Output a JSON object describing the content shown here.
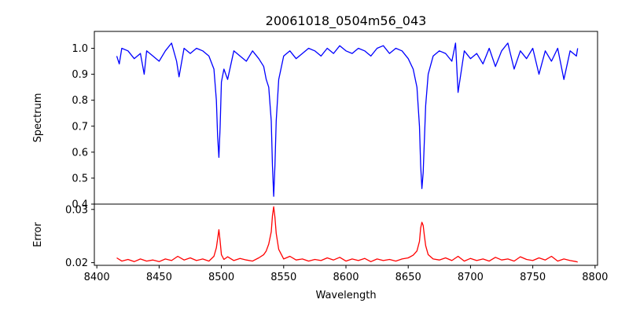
{
  "chart_data": {
    "type": "line",
    "title": "20061018_0504m56_043",
    "xlabel": "Wavelength",
    "x_ticks": [
      8400,
      8450,
      8500,
      8550,
      8600,
      8650,
      8700,
      8750,
      8800
    ],
    "x_tick_labels": [
      "8400",
      "8450",
      "8500",
      "8550",
      "8600",
      "8650",
      "8700",
      "8750",
      "8800"
    ],
    "xlim": [
      8398,
      8802
    ],
    "grid": false,
    "panels": [
      {
        "ylabel": "Spectrum",
        "ylim": [
          0.4,
          1.065
        ],
        "y_ticks": [
          0.4,
          0.5,
          0.6,
          0.7,
          0.8,
          0.9,
          1.0
        ],
        "y_tick_labels": [
          "0.4",
          "0.5",
          "0.6",
          "0.7",
          "0.8",
          "0.9",
          "1.0"
        ],
        "series_color": "#0000ff",
        "x": [
          8416,
          8418,
          8420,
          8425,
          8430,
          8435,
          8438,
          8440,
          8445,
          8450,
          8455,
          8460,
          8464,
          8466,
          8470,
          8475,
          8480,
          8485,
          8490,
          8494,
          8496,
          8497,
          8498,
          8499,
          8500,
          8502,
          8505,
          8510,
          8515,
          8520,
          8525,
          8530,
          8534,
          8536,
          8538,
          8540,
          8541,
          8542,
          8543,
          8544,
          8546,
          8550,
          8555,
          8560,
          8565,
          8570,
          8575,
          8580,
          8585,
          8590,
          8595,
          8600,
          8605,
          8610,
          8615,
          8620,
          8625,
          8630,
          8635,
          8640,
          8645,
          8650,
          8654,
          8657,
          8659,
          8660,
          8661,
          8662,
          8663,
          8664,
          8666,
          8670,
          8675,
          8680,
          8685,
          8688,
          8690,
          8695,
          8700,
          8705,
          8710,
          8715,
          8720,
          8725,
          8730,
          8735,
          8740,
          8745,
          8750,
          8755,
          8760,
          8765,
          8770,
          8775,
          8780,
          8785,
          8786
        ],
        "y": [
          0.97,
          0.94,
          1.0,
          0.99,
          0.96,
          0.98,
          0.9,
          0.99,
          0.97,
          0.95,
          0.99,
          1.02,
          0.95,
          0.89,
          1.0,
          0.98,
          1.0,
          0.99,
          0.97,
          0.92,
          0.8,
          0.66,
          0.58,
          0.7,
          0.87,
          0.92,
          0.88,
          0.99,
          0.97,
          0.95,
          0.99,
          0.96,
          0.93,
          0.88,
          0.85,
          0.72,
          0.55,
          0.43,
          0.55,
          0.72,
          0.88,
          0.97,
          0.99,
          0.96,
          0.98,
          1.0,
          0.99,
          0.97,
          1.0,
          0.98,
          1.01,
          0.99,
          0.98,
          1.0,
          0.99,
          0.97,
          1.0,
          1.01,
          0.98,
          1.0,
          0.99,
          0.96,
          0.92,
          0.85,
          0.7,
          0.55,
          0.46,
          0.52,
          0.65,
          0.78,
          0.9,
          0.97,
          0.99,
          0.98,
          0.95,
          1.02,
          0.83,
          0.99,
          0.96,
          0.98,
          0.94,
          1.0,
          0.93,
          0.99,
          1.02,
          0.92,
          0.99,
          0.96,
          1.0,
          0.9,
          0.99,
          0.95,
          1.0,
          0.88,
          0.99,
          0.97,
          1.0
        ]
      },
      {
        "ylabel": "Error",
        "ylim": [
          0.0195,
          0.031
        ],
        "y_ticks": [
          0.02,
          0.03
        ],
        "y_tick_labels": [
          "0.02",
          "0.03"
        ],
        "series_color": "#ff0000",
        "x": [
          8416,
          8420,
          8425,
          8430,
          8435,
          8440,
          8445,
          8450,
          8455,
          8460,
          8465,
          8470,
          8475,
          8480,
          8485,
          8490,
          8494,
          8496,
          8497,
          8498,
          8499,
          8500,
          8502,
          8505,
          8510,
          8515,
          8520,
          8525,
          8530,
          8534,
          8536,
          8538,
          8540,
          8541,
          8542,
          8543,
          8544,
          8546,
          8550,
          8555,
          8560,
          8565,
          8570,
          8575,
          8580,
          8585,
          8590,
          8595,
          8600,
          8605,
          8610,
          8615,
          8620,
          8625,
          8630,
          8635,
          8640,
          8645,
          8650,
          8654,
          8657,
          8659,
          8660,
          8661,
          8662,
          8663,
          8664,
          8666,
          8670,
          8675,
          8680,
          8685,
          8690,
          8695,
          8700,
          8705,
          8710,
          8715,
          8720,
          8725,
          8730,
          8735,
          8740,
          8745,
          8750,
          8755,
          8760,
          8765,
          8770,
          8775,
          8780,
          8785,
          8786
        ],
        "y": [
          0.0209,
          0.0203,
          0.0206,
          0.0202,
          0.0207,
          0.0203,
          0.0205,
          0.0202,
          0.0207,
          0.0204,
          0.0212,
          0.0205,
          0.0209,
          0.0204,
          0.0207,
          0.0203,
          0.0212,
          0.0228,
          0.0245,
          0.0262,
          0.024,
          0.0215,
          0.0206,
          0.0211,
          0.0204,
          0.0208,
          0.0205,
          0.0203,
          0.0209,
          0.0215,
          0.0222,
          0.0235,
          0.0258,
          0.0288,
          0.0305,
          0.0285,
          0.0255,
          0.0225,
          0.0207,
          0.0212,
          0.0205,
          0.0207,
          0.0203,
          0.0206,
          0.0204,
          0.0209,
          0.0205,
          0.021,
          0.0203,
          0.0207,
          0.0204,
          0.0208,
          0.0202,
          0.0207,
          0.0204,
          0.0206,
          0.0203,
          0.0207,
          0.0209,
          0.0214,
          0.0222,
          0.024,
          0.0265,
          0.0276,
          0.027,
          0.025,
          0.0232,
          0.0215,
          0.0207,
          0.0205,
          0.0209,
          0.0204,
          0.0212,
          0.0203,
          0.0208,
          0.0204,
          0.0207,
          0.0203,
          0.021,
          0.0205,
          0.0207,
          0.0203,
          0.0211,
          0.0206,
          0.0204,
          0.0209,
          0.0205,
          0.0212,
          0.0203,
          0.0207,
          0.0204,
          0.0202,
          0.0201
        ]
      }
    ]
  }
}
